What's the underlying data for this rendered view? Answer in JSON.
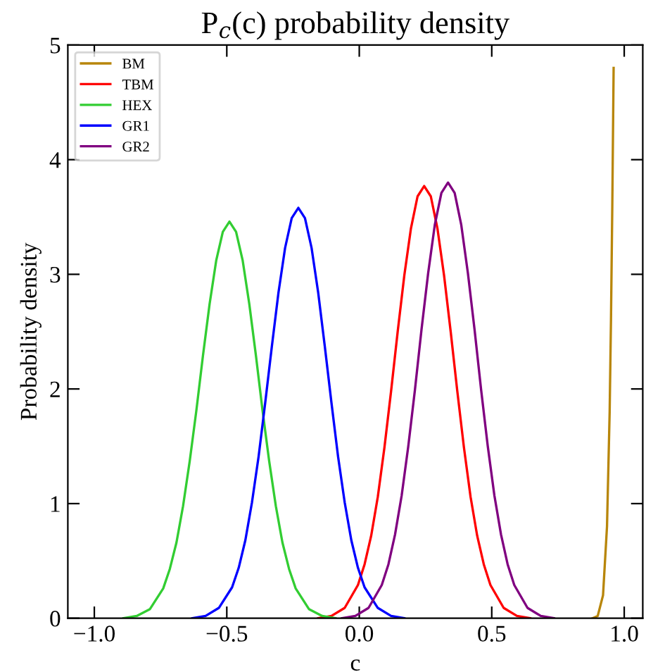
{
  "chart_data": {
    "type": "line",
    "title": "P$_{c}$(c) probability density",
    "xlabel": "c",
    "ylabel": "Probability density",
    "xlim": [
      -1.1,
      1.07
    ],
    "ylim": [
      0,
      5
    ],
    "xticks": [
      {
        "value": -1.0,
        "label": "−1.0"
      },
      {
        "value": -0.5,
        "label": "−0.5"
      },
      {
        "value": 0.0,
        "label": "0.0"
      },
      {
        "value": 0.5,
        "label": "0.5"
      },
      {
        "value": 1.0,
        "label": "1.0"
      }
    ],
    "yticks": [
      0,
      1,
      2,
      3,
      4,
      5
    ],
    "grid": false,
    "legend": "top left",
    "marker": "none",
    "line_style": "solid",
    "series": [
      {
        "name": "BM",
        "color": "#b8860b",
        "x": [
          0.88,
          0.9,
          0.92,
          0.935,
          0.945,
          0.95,
          0.955,
          0.96
        ],
        "values": [
          0.0,
          0.02,
          0.2,
          0.8,
          1.8,
          2.6,
          3.6,
          4.8
        ]
      },
      {
        "name": "TBM",
        "color": "#ff0000",
        "x": [
          -0.155,
          -0.105,
          -0.055,
          -0.005,
          0.02,
          0.045,
          0.07,
          0.095,
          0.12,
          0.145,
          0.17,
          0.195,
          0.22,
          0.245,
          0.27,
          0.295,
          0.32,
          0.345,
          0.37,
          0.395,
          0.42,
          0.445,
          0.47,
          0.495,
          0.545,
          0.595,
          0.645
        ],
        "values": [
          0.0,
          0.02,
          0.09,
          0.29,
          0.47,
          0.72,
          1.06,
          1.49,
          1.98,
          2.5,
          2.99,
          3.4,
          3.68,
          3.77,
          3.68,
          3.4,
          2.99,
          2.5,
          1.98,
          1.49,
          1.06,
          0.72,
          0.47,
          0.29,
          0.09,
          0.02,
          0.0
        ]
      },
      {
        "name": "HEX",
        "color": "#32cd32",
        "x": [
          -0.89,
          -0.84,
          -0.79,
          -0.74,
          -0.715,
          -0.69,
          -0.665,
          -0.64,
          -0.615,
          -0.59,
          -0.565,
          -0.54,
          -0.515,
          -0.49,
          -0.465,
          -0.44,
          -0.415,
          -0.39,
          -0.365,
          -0.34,
          -0.315,
          -0.29,
          -0.265,
          -0.24,
          -0.19,
          -0.14,
          -0.09
        ],
        "values": [
          0.0,
          0.02,
          0.08,
          0.26,
          0.43,
          0.66,
          0.98,
          1.37,
          1.81,
          2.29,
          2.74,
          3.12,
          3.37,
          3.46,
          3.37,
          3.12,
          2.74,
          2.29,
          1.81,
          1.37,
          0.98,
          0.66,
          0.43,
          0.26,
          0.08,
          0.02,
          0.0
        ]
      },
      {
        "name": "GR1",
        "color": "#0000ff",
        "x": [
          -0.63,
          -0.58,
          -0.53,
          -0.48,
          -0.455,
          -0.43,
          -0.405,
          -0.38,
          -0.355,
          -0.33,
          -0.305,
          -0.28,
          -0.255,
          -0.23,
          -0.205,
          -0.18,
          -0.155,
          -0.13,
          -0.105,
          -0.08,
          -0.055,
          -0.03,
          -0.005,
          0.02,
          0.07,
          0.12,
          0.17
        ],
        "values": [
          0.0,
          0.02,
          0.09,
          0.27,
          0.44,
          0.68,
          1.01,
          1.41,
          1.88,
          2.37,
          2.84,
          3.23,
          3.49,
          3.58,
          3.49,
          3.23,
          2.84,
          2.37,
          1.88,
          1.41,
          1.01,
          0.68,
          0.44,
          0.27,
          0.09,
          0.02,
          0.0
        ]
      },
      {
        "name": "GR2",
        "color": "#800080",
        "x": [
          -0.065,
          -0.015,
          0.035,
          0.085,
          0.11,
          0.135,
          0.16,
          0.185,
          0.21,
          0.235,
          0.26,
          0.285,
          0.31,
          0.335,
          0.36,
          0.385,
          0.41,
          0.435,
          0.46,
          0.485,
          0.51,
          0.535,
          0.56,
          0.585,
          0.635,
          0.685,
          0.735
        ],
        "values": [
          0.0,
          0.02,
          0.09,
          0.29,
          0.47,
          0.73,
          1.07,
          1.5,
          1.99,
          2.52,
          3.01,
          3.43,
          3.71,
          3.8,
          3.71,
          3.43,
          3.01,
          2.52,
          1.99,
          1.5,
          1.07,
          0.73,
          0.47,
          0.29,
          0.09,
          0.02,
          0.0
        ]
      }
    ]
  }
}
